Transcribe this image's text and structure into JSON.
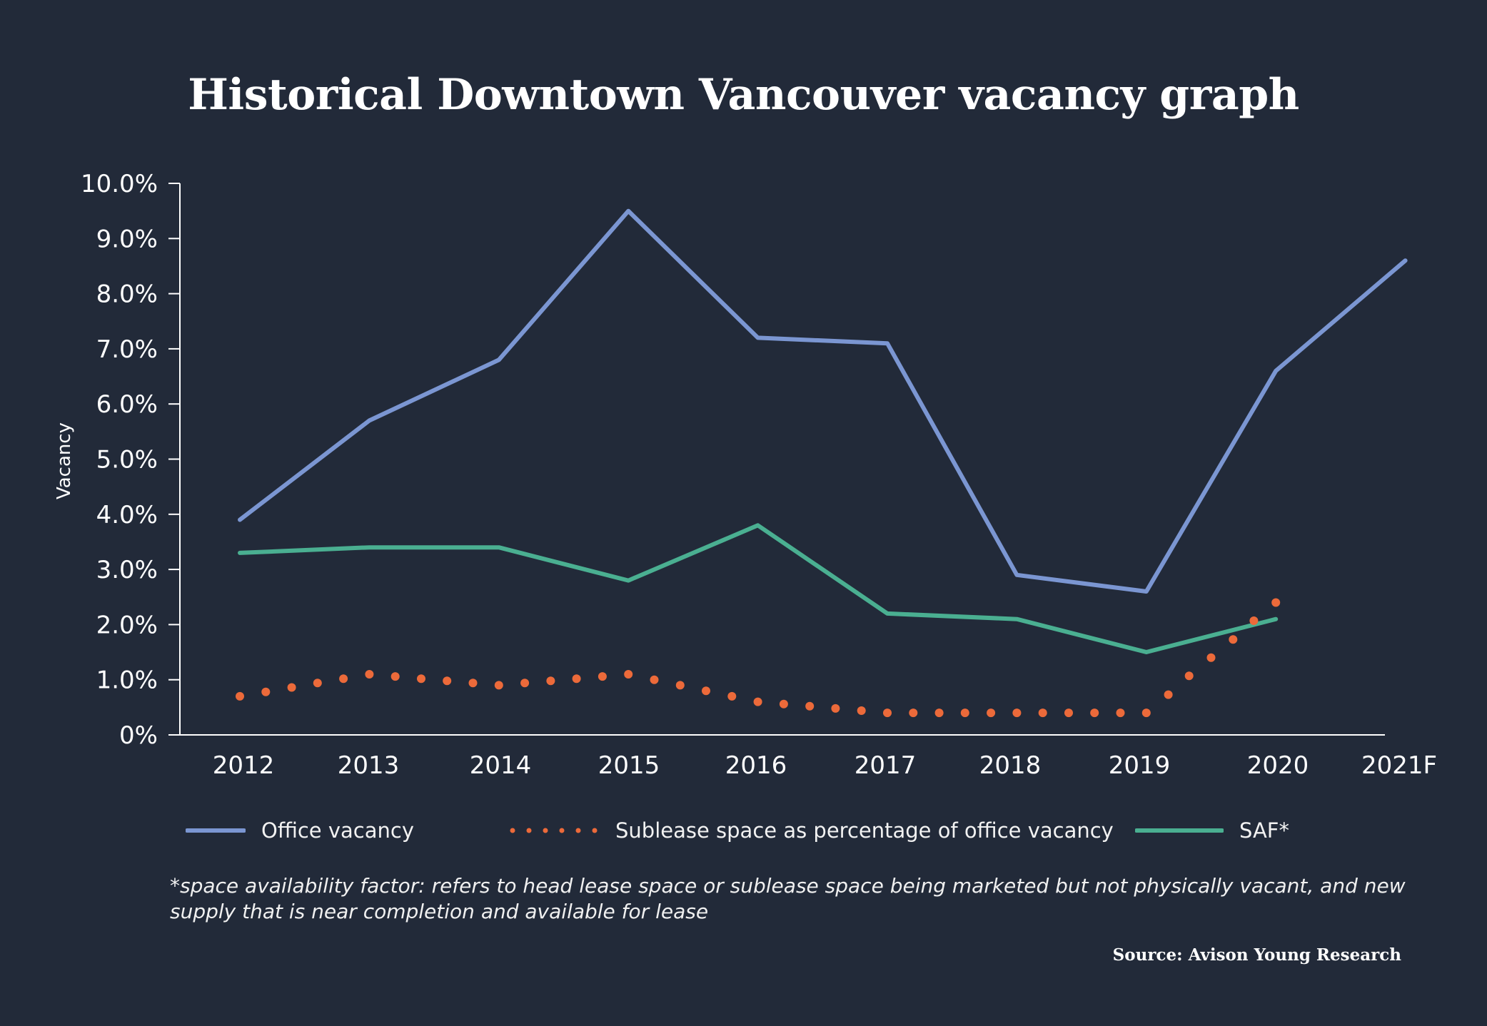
{
  "chart_data": {
    "type": "line",
    "title": "Historical Downtown Vancouver vacancy graph",
    "ylabel": "Vacancy",
    "xlabel": "",
    "categories": [
      "2012",
      "2013",
      "2014",
      "2015",
      "2016",
      "2017",
      "2018",
      "2019",
      "2020",
      "2021F"
    ],
    "y_ticks": [
      "0%",
      "1.0%",
      "2.0%",
      "3.0%",
      "4.0%",
      "5.0%",
      "6.0%",
      "7.0%",
      "8.0%",
      "9.0%",
      "10.0%"
    ],
    "ylim": [
      0,
      10
    ],
    "grid": false,
    "legend_position": "bottom",
    "series": [
      {
        "name": "Office vacancy",
        "style": "solid",
        "color": "#7b96d2",
        "values": [
          3.9,
          5.7,
          6.8,
          9.5,
          7.2,
          7.1,
          2.9,
          2.6,
          6.6,
          8.6
        ]
      },
      {
        "name": "Sublease space as percentage of office vacancy",
        "style": "dotted",
        "color": "#ec6a3a",
        "x": [
          2012,
          2012.2,
          2012.4,
          2012.6,
          2012.8,
          2013,
          2013.2,
          2013.4,
          2013.6,
          2013.8,
          2014,
          2014.2,
          2014.4,
          2014.6,
          2014.8,
          2015,
          2015.2,
          2015.4,
          2015.6,
          2015.8,
          2016,
          2016.2,
          2016.4,
          2016.6,
          2016.8,
          2017,
          2017.2,
          2017.4,
          2017.6,
          2017.8,
          2018,
          2018.2,
          2018.4,
          2018.6,
          2018.8,
          2019,
          2019.17,
          2019.33,
          2019.5,
          2019.67,
          2019.83,
          2020
        ],
        "values": [
          0.7,
          0.78,
          0.86,
          0.94,
          1.02,
          1.1,
          1.06,
          1.02,
          0.98,
          0.94,
          0.9,
          0.94,
          0.98,
          1.02,
          1.06,
          1.1,
          1.0,
          0.9,
          0.8,
          0.7,
          0.6,
          0.56,
          0.52,
          0.48,
          0.44,
          0.4,
          0.4,
          0.4,
          0.4,
          0.4,
          0.4,
          0.4,
          0.4,
          0.4,
          0.4,
          0.4,
          0.73,
          1.07,
          1.4,
          1.73,
          2.07,
          2.4
        ]
      },
      {
        "name": "SAF*",
        "style": "solid",
        "color": "#4aaf91",
        "values": [
          3.3,
          3.4,
          3.4,
          2.8,
          3.8,
          2.2,
          2.1,
          1.5,
          2.1,
          null
        ]
      }
    ],
    "footnote": "*space availability factor: refers to head lease space or sublease space being marketed but not physically vacant, and new supply that is near completion and available for lease",
    "source": "Source: Avison Young Research"
  }
}
